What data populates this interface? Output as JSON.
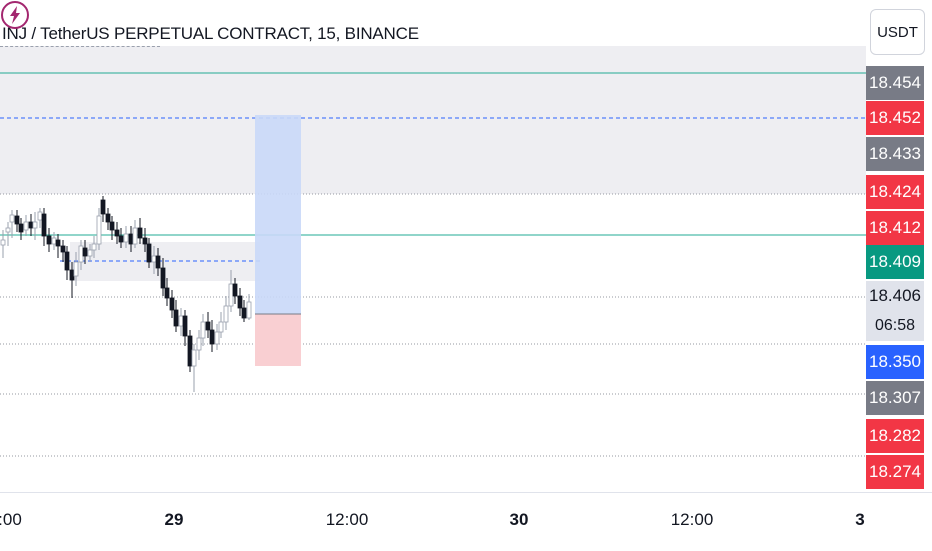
{
  "symbol_title": "INJ / TetherUS PERPETUAL CONTRACT, 15, BINANCE",
  "currency_button": "USDT",
  "price_tags": [
    {
      "value": "18.454",
      "style": "gray"
    },
    {
      "value": "18.452",
      "style": "red"
    },
    {
      "value": "18.433",
      "style": "gray"
    },
    {
      "value": "18.424",
      "style": "red"
    },
    {
      "value": "18.412",
      "style": "red"
    },
    {
      "value": "18.409",
      "style": "green"
    },
    {
      "value": "18.406",
      "style": "lightgray"
    },
    {
      "value": "06:58",
      "style": "lightgray"
    },
    {
      "value": "18.350",
      "style": "blue"
    },
    {
      "value": "18.307",
      "style": "gray"
    },
    {
      "value": "18.282",
      "style": "red"
    },
    {
      "value": "18.274",
      "style": "red"
    }
  ],
  "time_labels": [
    {
      "text": ":00",
      "bold": false
    },
    {
      "text": "29",
      "bold": true
    },
    {
      "text": "12:00",
      "bold": false
    },
    {
      "text": "30",
      "bold": true
    },
    {
      "text": "12:00",
      "bold": false
    },
    {
      "text": "3",
      "bold": true
    }
  ],
  "colors": {
    "up": "#089981",
    "down": "#f23645",
    "candle": "#131722",
    "teal_line": "#22ab94",
    "blue_dash": "#2962ff",
    "long_target": "#c9d8f8",
    "long_stop": "#f9cfd2",
    "zone": "#eeeef2"
  },
  "icons": {
    "alert": "lightning-bolt-icon"
  }
}
